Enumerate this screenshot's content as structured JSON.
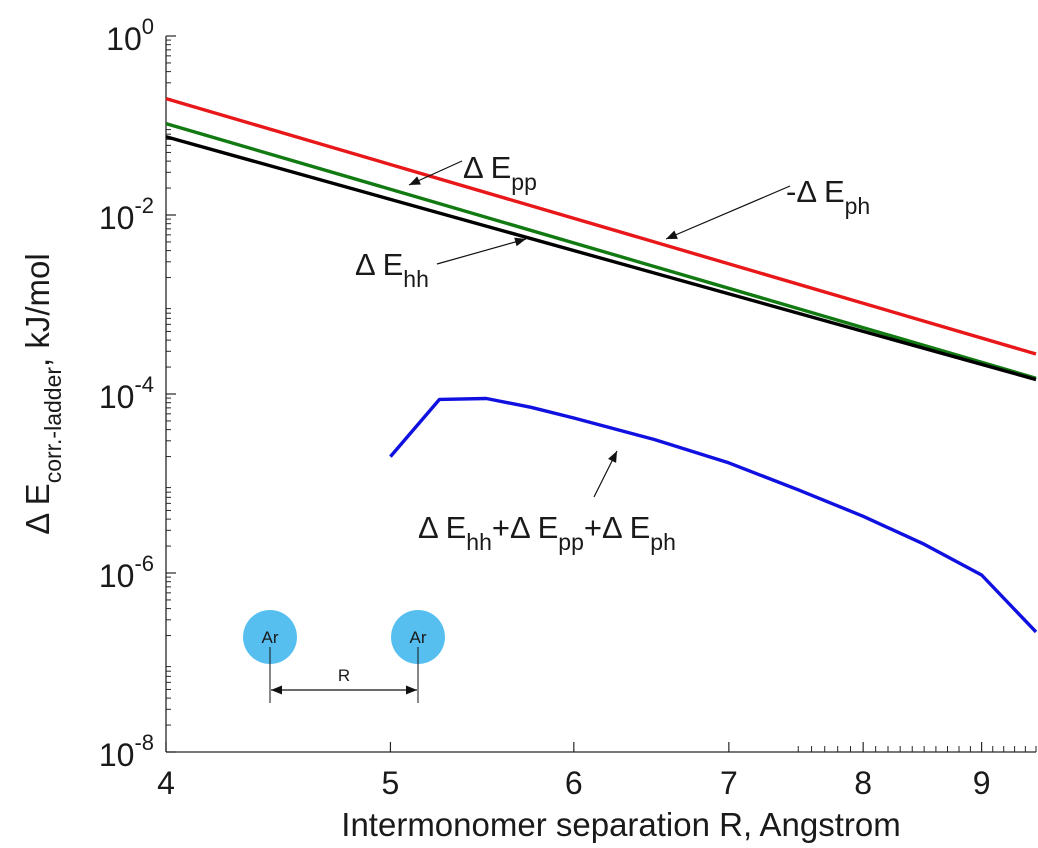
{
  "chart_data": {
    "type": "line",
    "xscale": "log",
    "yscale": "log",
    "xlim": [
      4,
      9.5
    ],
    "ylim": [
      1e-08,
      1
    ],
    "xticks": [
      4,
      5,
      6,
      7,
      8,
      9
    ],
    "yticks": [
      {
        "value": 1e-08,
        "base": "10",
        "exp": "-8"
      },
      {
        "value": 1e-06,
        "base": "10",
        "exp": "-6"
      },
      {
        "value": 0.0001,
        "base": "10",
        "exp": "-4"
      },
      {
        "value": 0.01,
        "base": "10",
        "exp": "-2"
      },
      {
        "value": 1,
        "base": "10",
        "exp": "0"
      }
    ],
    "xlabel": "Intermonomer separation R, Angstrom",
    "ylabel": {
      "delta": "Δ",
      "main": "E",
      "sub": "corr.-ladder",
      "rest": ", kJ/mol"
    },
    "grid": false,
    "series": [
      {
        "label_key": "ph",
        "color": "#e8181a",
        "x": [
          4,
          9.5
        ],
        "y": [
          0.2,
          0.00028
        ]
      },
      {
        "label_key": "pp",
        "color": "#117a11",
        "x": [
          4,
          9.5
        ],
        "y": [
          0.105,
          0.00015
        ]
      },
      {
        "label_key": "hh",
        "color": "#000000",
        "x": [
          4,
          9.5
        ],
        "y": [
          0.075,
          0.000145
        ]
      },
      {
        "label_key": "sum",
        "color": "#1010e0",
        "x": [
          5.0,
          5.25,
          5.5,
          5.75,
          6.0,
          6.5,
          7.0,
          7.5,
          8.0,
          8.5,
          9.0,
          9.5
        ],
        "y": [
          2e-05,
          8.7e-05,
          8.9e-05,
          7.1e-05,
          5.4e-05,
          3.1e-05,
          1.7e-05,
          8.5e-06,
          4.3e-06,
          2.1e-06,
          9.5e-07,
          2.2e-07
        ]
      }
    ],
    "annotations": {
      "pp": {
        "delta": "Δ",
        "main": "E",
        "sub": "pp"
      },
      "ph": {
        "prefix": "-",
        "delta": "Δ",
        "main": "E",
        "sub": "ph"
      },
      "hh": {
        "delta": "Δ",
        "main": "E",
        "sub": "hh"
      },
      "sum": {
        "parts": [
          {
            "delta": "Δ",
            "main": "E",
            "sub": "hh"
          },
          {
            "plus": "+"
          },
          {
            "delta": "Δ",
            "main": "E",
            "sub": "pp"
          },
          {
            "plus": "+"
          },
          {
            "delta": "Δ",
            "main": "E",
            "sub": "ph"
          }
        ]
      }
    },
    "inset": {
      "atom_left": "Ar",
      "atom_right": "Ar",
      "distance_label": "R",
      "atom_color": "#56bfef"
    }
  }
}
